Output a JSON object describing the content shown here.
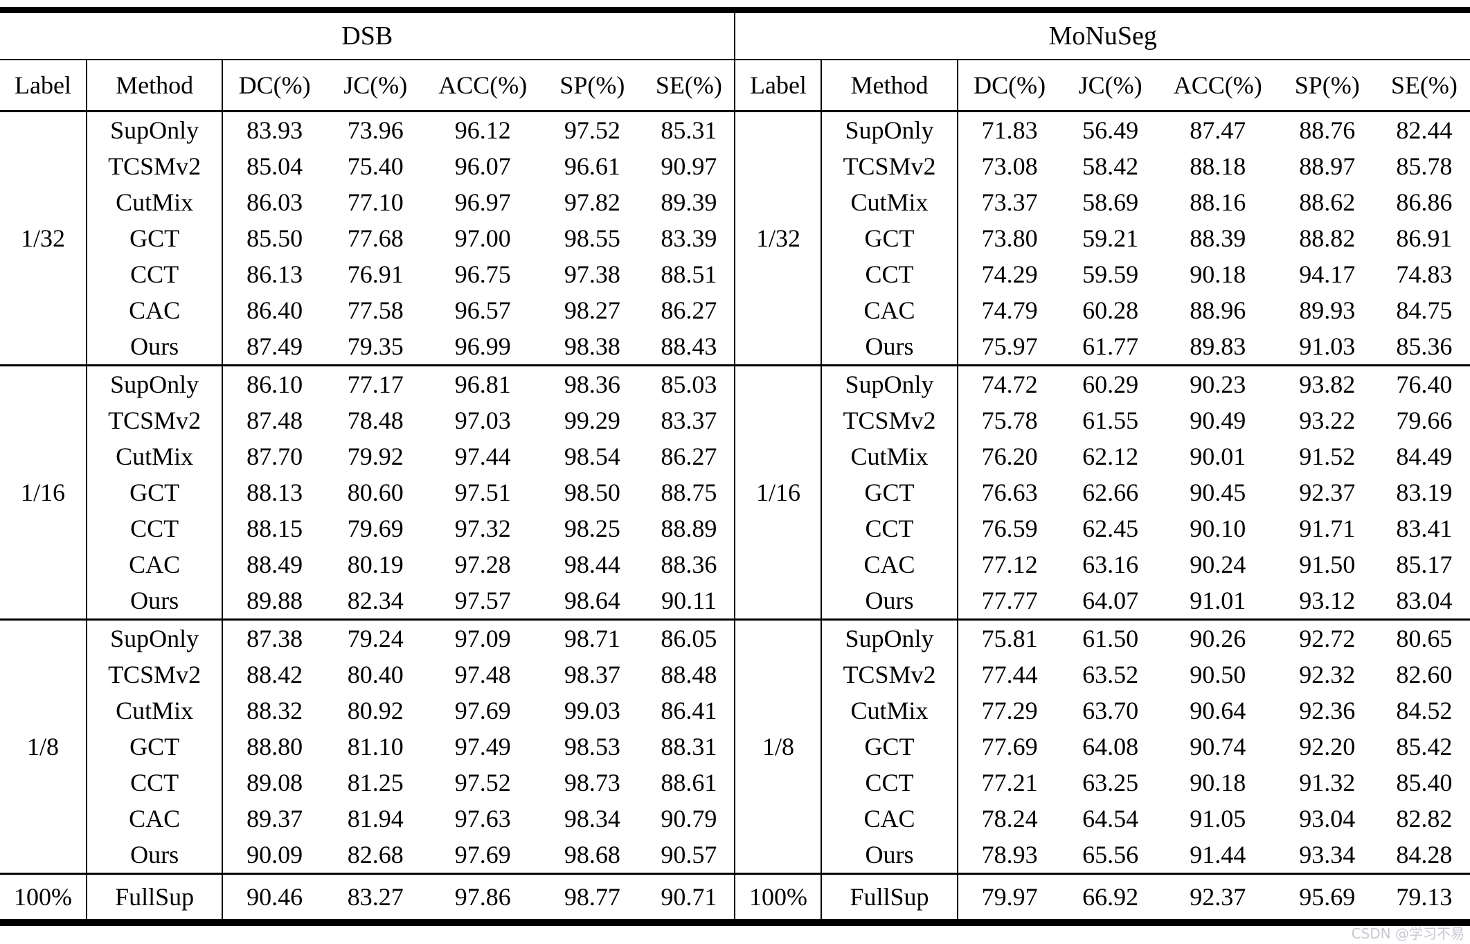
{
  "table": {
    "datasets": [
      "DSB",
      "MoNuSeg"
    ],
    "columns": [
      "Label",
      "Method",
      "DC(%)",
      "JC(%)",
      "ACC(%)",
      "SP(%)",
      "SE(%)"
    ],
    "groups": [
      {
        "label": "1/32",
        "rows": [
          {
            "method": "SupOnly",
            "bold": false,
            "dsb": [
              "83.93",
              "73.96",
              "96.12",
              "97.52",
              "85.31"
            ],
            "dsb_b": [
              0,
              0,
              0,
              0,
              0
            ],
            "monuseg": [
              "71.83",
              "56.49",
              "87.47",
              "88.76",
              "82.44"
            ],
            "monuseg_b": [
              0,
              0,
              0,
              0,
              0
            ]
          },
          {
            "method": "TCSMv2",
            "bold": false,
            "dsb": [
              "85.04",
              "75.40",
              "96.07",
              "96.61",
              "90.97"
            ],
            "dsb_b": [
              0,
              0,
              0,
              0,
              1
            ],
            "monuseg": [
              "73.08",
              "58.42",
              "88.18",
              "88.97",
              "85.78"
            ],
            "monuseg_b": [
              0,
              0,
              0,
              0,
              0
            ]
          },
          {
            "method": "CutMix",
            "bold": false,
            "dsb": [
              "86.03",
              "77.10",
              "96.97",
              "97.82",
              "89.39"
            ],
            "dsb_b": [
              0,
              0,
              0,
              0,
              0
            ],
            "monuseg": [
              "73.37",
              "58.69",
              "88.16",
              "88.62",
              "86.86"
            ],
            "monuseg_b": [
              0,
              0,
              0,
              0,
              0
            ]
          },
          {
            "method": "GCT",
            "bold": false,
            "dsb": [
              "85.50",
              "77.68",
              "97.00",
              "98.55",
              "83.39"
            ],
            "dsb_b": [
              0,
              0,
              1,
              1,
              0
            ],
            "monuseg": [
              "73.80",
              "59.21",
              "88.39",
              "88.82",
              "86.91"
            ],
            "monuseg_b": [
              0,
              0,
              0,
              0,
              1
            ]
          },
          {
            "method": "CCT",
            "bold": false,
            "dsb": [
              "86.13",
              "76.91",
              "96.75",
              "97.38",
              "88.51"
            ],
            "dsb_b": [
              0,
              0,
              0,
              0,
              0
            ],
            "monuseg": [
              "74.29",
              "59.59",
              "90.18",
              "94.17",
              "74.83"
            ],
            "monuseg_b": [
              0,
              0,
              1,
              1,
              0
            ]
          },
          {
            "method": "CAC",
            "bold": false,
            "dsb": [
              "86.40",
              "77.58",
              "96.57",
              "98.27",
              "86.27"
            ],
            "dsb_b": [
              0,
              0,
              0,
              0,
              0
            ],
            "monuseg": [
              "74.79",
              "60.28",
              "88.96",
              "89.93",
              "84.75"
            ],
            "monuseg_b": [
              0,
              0,
              0,
              0,
              0
            ]
          },
          {
            "method": "Ours",
            "bold": true,
            "dsb": [
              "87.49",
              "79.35",
              "96.99",
              "98.38",
              "88.43"
            ],
            "dsb_b": [
              1,
              1,
              0,
              0,
              0
            ],
            "monuseg": [
              "75.97",
              "61.77",
              "89.83",
              "91.03",
              "85.36"
            ],
            "monuseg_b": [
              1,
              1,
              0,
              0,
              0
            ]
          }
        ]
      },
      {
        "label": "1/16",
        "rows": [
          {
            "method": "SupOnly",
            "bold": false,
            "dsb": [
              "86.10",
              "77.17",
              "96.81",
              "98.36",
              "85.03"
            ],
            "dsb_b": [
              0,
              0,
              0,
              0,
              0
            ],
            "monuseg": [
              "74.72",
              "60.29",
              "90.23",
              "93.82",
              "76.40"
            ],
            "monuseg_b": [
              0,
              0,
              0,
              1,
              0
            ]
          },
          {
            "method": "TCSMv2",
            "bold": false,
            "dsb": [
              "87.48",
              "78.48",
              "97.03",
              "99.29",
              "83.37"
            ],
            "dsb_b": [
              0,
              0,
              0,
              1,
              0
            ],
            "monuseg": [
              "75.78",
              "61.55",
              "90.49",
              "93.22",
              "79.66"
            ],
            "monuseg_b": [
              0,
              0,
              0,
              0,
              0
            ]
          },
          {
            "method": "CutMix",
            "bold": false,
            "dsb": [
              "87.70",
              "79.92",
              "97.44",
              "98.54",
              "86.27"
            ],
            "dsb_b": [
              0,
              0,
              0,
              0,
              0
            ],
            "monuseg": [
              "76.20",
              "62.12",
              "90.01",
              "91.52",
              "84.49"
            ],
            "monuseg_b": [
              0,
              0,
              0,
              0,
              0
            ]
          },
          {
            "method": "GCT",
            "bold": false,
            "dsb": [
              "88.13",
              "80.60",
              "97.51",
              "98.50",
              "88.75"
            ],
            "dsb_b": [
              0,
              0,
              0,
              0,
              0
            ],
            "monuseg": [
              "76.63",
              "62.66",
              "90.45",
              "92.37",
              "83.19"
            ],
            "monuseg_b": [
              0,
              0,
              0,
              0,
              0
            ]
          },
          {
            "method": "CCT",
            "bold": false,
            "dsb": [
              "88.15",
              "79.69",
              "97.32",
              "98.25",
              "88.89"
            ],
            "dsb_b": [
              0,
              0,
              0,
              0,
              0
            ],
            "monuseg": [
              "76.59",
              "62.45",
              "90.10",
              "91.71",
              "83.41"
            ],
            "monuseg_b": [
              0,
              0,
              0,
              0,
              0
            ]
          },
          {
            "method": "CAC",
            "bold": false,
            "dsb": [
              "88.49",
              "80.19",
              "97.28",
              "98.44",
              "88.36"
            ],
            "dsb_b": [
              0,
              0,
              0,
              0,
              0
            ],
            "monuseg": [
              "77.12",
              "63.16",
              "90.24",
              "91.50",
              "85.17"
            ],
            "monuseg_b": [
              0,
              0,
              0,
              0,
              1
            ]
          },
          {
            "method": "Ours",
            "bold": true,
            "dsb": [
              "89.88",
              "82.34",
              "97.57",
              "98.64",
              "90.11"
            ],
            "dsb_b": [
              1,
              1,
              1,
              0,
              1
            ],
            "monuseg": [
              "77.77",
              "64.07",
              "91.01",
              "93.12",
              "83.04"
            ],
            "monuseg_b": [
              1,
              1,
              1,
              0,
              0
            ]
          }
        ]
      },
      {
        "label": "1/8",
        "rows": [
          {
            "method": "SupOnly",
            "bold": false,
            "dsb": [
              "87.38",
              "79.24",
              "97.09",
              "98.71",
              "86.05"
            ],
            "dsb_b": [
              0,
              0,
              0,
              0,
              0
            ],
            "monuseg": [
              "75.81",
              "61.50",
              "90.26",
              "92.72",
              "80.65"
            ],
            "monuseg_b": [
              0,
              0,
              0,
              0,
              0
            ]
          },
          {
            "method": "TCSMv2",
            "bold": false,
            "dsb": [
              "88.42",
              "80.40",
              "97.48",
              "98.37",
              "88.48"
            ],
            "dsb_b": [
              0,
              0,
              0,
              0,
              0
            ],
            "monuseg": [
              "77.44",
              "63.52",
              "90.50",
              "92.32",
              "82.60"
            ],
            "monuseg_b": [
              0,
              0,
              0,
              0,
              0
            ]
          },
          {
            "method": "CutMix",
            "bold": false,
            "dsb": [
              "88.32",
              "80.92",
              "97.69",
              "99.03",
              "86.41"
            ],
            "dsb_b": [
              0,
              0,
              0,
              1,
              0
            ],
            "monuseg": [
              "77.29",
              "63.70",
              "90.64",
              "92.36",
              "84.52"
            ],
            "monuseg_b": [
              0,
              0,
              0,
              0,
              0
            ]
          },
          {
            "method": "GCT",
            "bold": false,
            "dsb": [
              "88.80",
              "81.10",
              "97.49",
              "98.53",
              "88.31"
            ],
            "dsb_b": [
              0,
              0,
              0,
              0,
              0
            ],
            "monuseg": [
              "77.69",
              "64.08",
              "90.74",
              "92.20",
              "85.42"
            ],
            "monuseg_b": [
              0,
              0,
              0,
              0,
              1
            ]
          },
          {
            "method": "CCT",
            "bold": false,
            "dsb": [
              "89.08",
              "81.25",
              "97.52",
              "98.73",
              "88.61"
            ],
            "dsb_b": [
              0,
              0,
              0,
              0,
              0
            ],
            "monuseg": [
              "77.21",
              "63.25",
              "90.18",
              "91.32",
              "85.40"
            ],
            "monuseg_b": [
              0,
              0,
              0,
              0,
              0
            ]
          },
          {
            "method": "CAC",
            "bold": false,
            "dsb": [
              "89.37",
              "81.94",
              "97.63",
              "98.34",
              "90.79"
            ],
            "dsb_b": [
              0,
              0,
              0,
              0,
              1
            ],
            "monuseg": [
              "78.24",
              "64.54",
              "91.05",
              "93.04",
              "82.82"
            ],
            "monuseg_b": [
              0,
              0,
              0,
              0,
              0
            ]
          },
          {
            "method": "Ours",
            "bold": true,
            "dsb": [
              "90.09",
              "82.68",
              "97.69",
              "98.68",
              "90.57"
            ],
            "dsb_b": [
              1,
              1,
              1,
              0,
              0
            ],
            "monuseg": [
              "78.93",
              "65.56",
              "91.44",
              "93.34",
              "84.28"
            ],
            "monuseg_b": [
              1,
              1,
              1,
              1,
              0
            ]
          }
        ]
      },
      {
        "label": "100%",
        "rows": [
          {
            "method": "FullSup",
            "bold": false,
            "dsb": [
              "90.46",
              "83.27",
              "97.86",
              "98.77",
              "90.71"
            ],
            "dsb_b": [
              0,
              0,
              0,
              0,
              0
            ],
            "monuseg": [
              "79.97",
              "66.92",
              "92.37",
              "95.69",
              "79.13"
            ],
            "monuseg_b": [
              0,
              0,
              0,
              0,
              0
            ]
          }
        ]
      }
    ]
  },
  "watermark": {
    "text": "CSDN @学习不易",
    "color": "#c9c7d3"
  },
  "colors": {
    "text": "#000000",
    "background": "#ffffff",
    "rule": "#000000"
  }
}
